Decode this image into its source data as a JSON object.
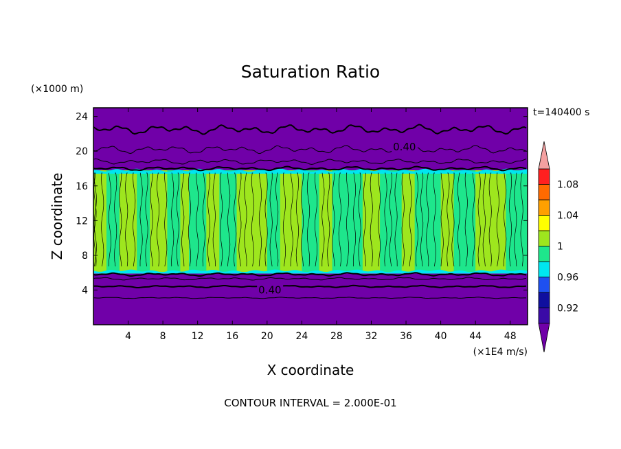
{
  "chart_data": {
    "type": "heatmap",
    "title": "Saturation Ratio",
    "y_units": "(×1000 m)",
    "x_units": "(×1E4 m/s)",
    "xlabel": "X coordinate",
    "ylabel": "Z coordinate",
    "time_label": "t=140400 s",
    "footer": "CONTOUR INTERVAL = 2.000E-01",
    "xlim": [
      0,
      50
    ],
    "ylim": [
      0,
      25
    ],
    "x_ticks": [
      4,
      8,
      12,
      16,
      20,
      24,
      28,
      32,
      36,
      40,
      44,
      48
    ],
    "y_ticks": [
      4,
      8,
      12,
      16,
      20,
      24
    ],
    "contour_labels": [
      {
        "text": "0.40",
        "x": 34.5,
        "y": 20.5
      },
      {
        "text": "0.40",
        "x": 19,
        "y": 4
      }
    ],
    "layers": {
      "upper_dry_start": 17.8,
      "cloud_bottom": 5.9,
      "lower_dry_top": 5.8
    },
    "colorbar": {
      "labels": [
        "0.92",
        "0.96",
        "1",
        "1.04",
        "1.08"
      ],
      "bins": [
        {
          "from": 0.9,
          "to": 0.92,
          "color": "#3a0aa6"
        },
        {
          "from": 0.92,
          "to": 0.94,
          "color": "#0f0f9e"
        },
        {
          "from": 0.94,
          "to": 0.96,
          "color": "#1e50f0"
        },
        {
          "from": 0.96,
          "to": 0.98,
          "color": "#00e6f0"
        },
        {
          "from": 0.98,
          "to": 1.0,
          "color": "#1ee68c"
        },
        {
          "from": 1.0,
          "to": 1.02,
          "color": "#9ee61e"
        },
        {
          "from": 1.02,
          "to": 1.04,
          "color": "#ffff00"
        },
        {
          "from": 1.04,
          "to": 1.06,
          "color": "#ffa000"
        },
        {
          "from": 1.06,
          "to": 1.08,
          "color": "#ff6a00"
        },
        {
          "from": 1.08,
          "to": 1.1,
          "color": "#ff2020"
        }
      ],
      "under_color": "#7000a8",
      "over_color": "#f4a0a0"
    },
    "columns": [
      {
        "x0": 0.0,
        "x1": 1.5,
        "v": 1.01
      },
      {
        "x0": 1.5,
        "x1": 3.0,
        "v": 0.99
      },
      {
        "x0": 3.0,
        "x1": 5.0,
        "v": 1.01
      },
      {
        "x0": 5.0,
        "x1": 6.5,
        "v": 0.99
      },
      {
        "x0": 6.5,
        "x1": 8.5,
        "v": 1.01
      },
      {
        "x0": 8.5,
        "x1": 10.0,
        "v": 0.99
      },
      {
        "x0": 10.0,
        "x1": 11.0,
        "v": 1.01
      },
      {
        "x0": 11.0,
        "x1": 13.0,
        "v": 0.99
      },
      {
        "x0": 13.0,
        "x1": 14.5,
        "v": 1.01
      },
      {
        "x0": 14.5,
        "x1": 16.5,
        "v": 0.99
      },
      {
        "x0": 16.5,
        "x1": 20.0,
        "v": 1.01
      },
      {
        "x0": 20.0,
        "x1": 21.5,
        "v": 0.99
      },
      {
        "x0": 21.5,
        "x1": 24.0,
        "v": 1.01
      },
      {
        "x0": 24.0,
        "x1": 26.0,
        "v": 0.99
      },
      {
        "x0": 26.0,
        "x1": 27.5,
        "v": 1.01
      },
      {
        "x0": 27.5,
        "x1": 31.0,
        "v": 0.99
      },
      {
        "x0": 31.0,
        "x1": 33.0,
        "v": 1.01
      },
      {
        "x0": 33.0,
        "x1": 35.5,
        "v": 0.99
      },
      {
        "x0": 35.5,
        "x1": 37.0,
        "v": 1.01
      },
      {
        "x0": 37.0,
        "x1": 40.0,
        "v": 0.99
      },
      {
        "x0": 40.0,
        "x1": 41.5,
        "v": 1.01
      },
      {
        "x0": 41.5,
        "x1": 44.0,
        "v": 0.99
      },
      {
        "x0": 44.0,
        "x1": 47.5,
        "v": 1.01
      },
      {
        "x0": 47.5,
        "x1": 50.0,
        "v": 0.99
      }
    ]
  }
}
